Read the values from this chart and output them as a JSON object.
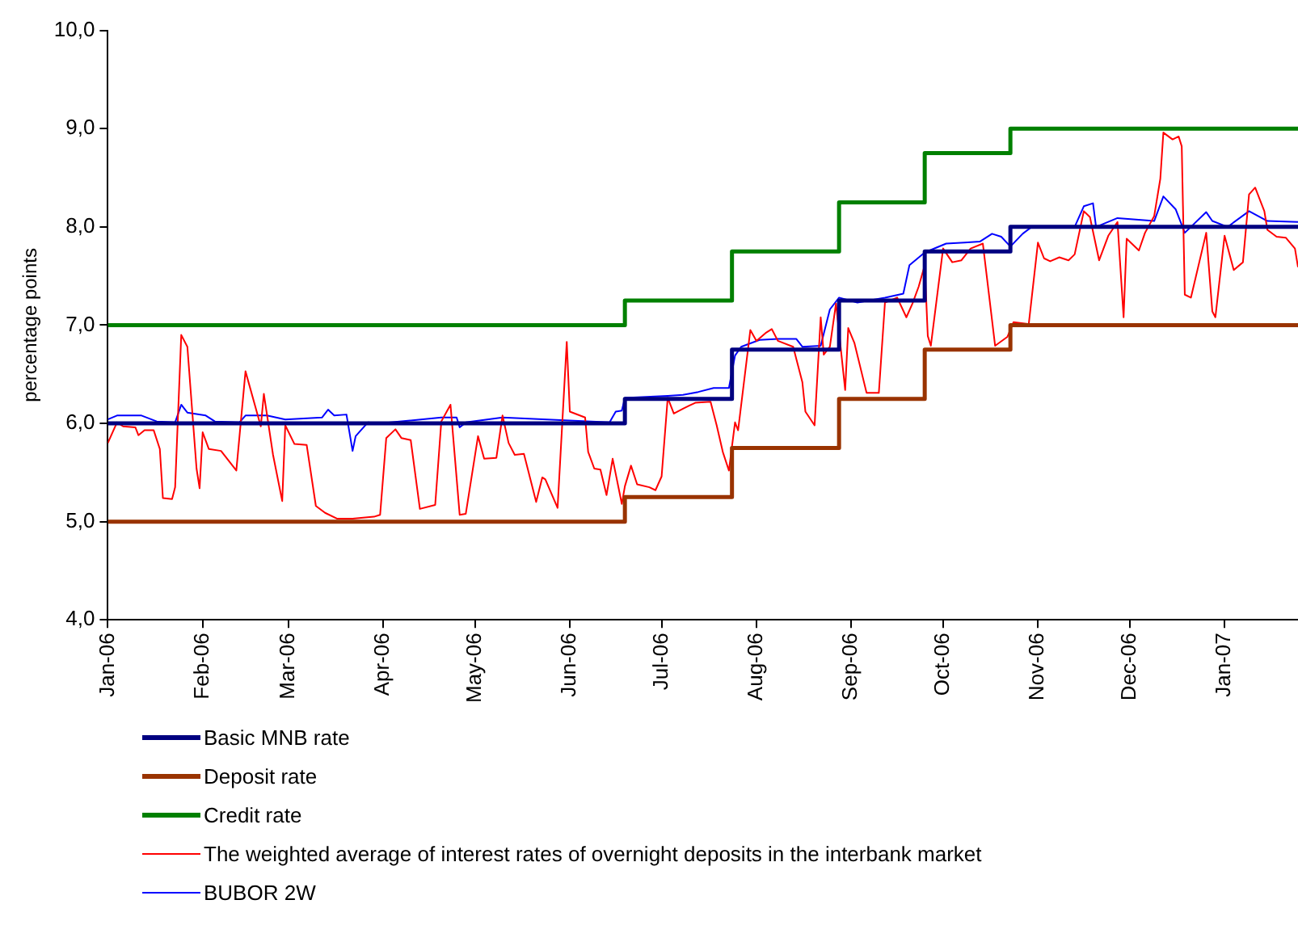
{
  "chart_data": {
    "type": "line",
    "ylabel": "percentage points",
    "legend": "bottom",
    "grid": false,
    "marker": "none",
    "line_style": "solid",
    "xlim": [
      "2006-01-01",
      "2007-01-25"
    ],
    "xticks": [
      {
        "value": "2006-01-01",
        "label": "Jan-06"
      },
      {
        "value": "2006-02-01",
        "label": "Feb-06"
      },
      {
        "value": "2006-03-01",
        "label": "Mar-06"
      },
      {
        "value": "2006-04-01",
        "label": "Apr-06"
      },
      {
        "value": "2006-05-01",
        "label": "May-06"
      },
      {
        "value": "2006-06-01",
        "label": "Jun-06"
      },
      {
        "value": "2006-07-01",
        "label": "Jul-06"
      },
      {
        "value": "2006-08-01",
        "label": "Aug-06"
      },
      {
        "value": "2006-09-01",
        "label": "Sep-06"
      },
      {
        "value": "2006-10-01",
        "label": "Oct-06"
      },
      {
        "value": "2006-11-01",
        "label": "Nov-06"
      },
      {
        "value": "2006-12-01",
        "label": "Dec-06"
      },
      {
        "value": "2007-01-01",
        "label": "Jan-07"
      }
    ],
    "ylim": [
      4,
      10
    ],
    "yticks": [
      {
        "value": 4,
        "label": "4,0"
      },
      {
        "value": 5,
        "label": "5,0"
      },
      {
        "value": 6,
        "label": "6,0"
      },
      {
        "value": 7,
        "label": "7,0"
      },
      {
        "value": 8,
        "label": "8,0"
      },
      {
        "value": 9,
        "label": "9,0"
      },
      {
        "value": 10,
        "label": "10,0"
      }
    ],
    "series": [
      {
        "name": "Basic MNB rate",
        "type": "step",
        "color": "#000080",
        "x": [
          "2006-01-01",
          "2006-06-19",
          "2006-07-24",
          "2006-08-28",
          "2006-09-25",
          "2006-10-23",
          "2007-01-25"
        ],
        "values": [
          6,
          6.25,
          6.75,
          7.25,
          7.75,
          8,
          8
        ]
      },
      {
        "name": "Deposit rate",
        "type": "step",
        "color": "#993300",
        "x": [
          "2006-01-01",
          "2006-06-19",
          "2006-07-24",
          "2006-08-28",
          "2006-09-25",
          "2006-10-23",
          "2007-01-25"
        ],
        "values": [
          5,
          5.25,
          5.75,
          6.25,
          6.75,
          7,
          7
        ]
      },
      {
        "name": "Credit rate",
        "type": "step",
        "color": "#008000",
        "x": [
          "2006-01-01",
          "2006-06-19",
          "2006-07-24",
          "2006-08-28",
          "2006-09-25",
          "2006-10-23",
          "2007-01-25"
        ],
        "values": [
          7,
          7.25,
          7.75,
          8.25,
          8.75,
          9,
          9
        ]
      },
      {
        "name": "The weighted average of interest rates of overnight deposits in the interbank market",
        "type": "line",
        "color": "#ff0000",
        "x": [
          "2006-01-01",
          "2006-01-04",
          "2006-01-06",
          "2006-01-10",
          "2006-01-11",
          "2006-01-13",
          "2006-01-16",
          "2006-01-18",
          "2006-01-19",
          "2006-01-22",
          "2006-01-23",
          "2006-01-25",
          "2006-01-27",
          "2006-01-30",
          "2006-01-31",
          "2006-02-01",
          "2006-02-03",
          "2006-02-07",
          "2006-02-12",
          "2006-02-15",
          "2006-02-20",
          "2006-02-21",
          "2006-02-24",
          "2006-02-27",
          "2006-02-28",
          "2006-03-03",
          "2006-03-07",
          "2006-03-10",
          "2006-03-13",
          "2006-03-17",
          "2006-03-22",
          "2006-03-29",
          "2006-03-31",
          "2006-04-02",
          "2006-04-05",
          "2006-04-07",
          "2006-04-10",
          "2006-04-13",
          "2006-04-18",
          "2006-04-20",
          "2006-04-23",
          "2006-04-26",
          "2006-04-28",
          "2006-05-02",
          "2006-05-04",
          "2006-05-08",
          "2006-05-10",
          "2006-05-12",
          "2006-05-14",
          "2006-05-17",
          "2006-05-21",
          "2006-05-23",
          "2006-05-24",
          "2006-05-28",
          "2006-05-31",
          "2006-06-01",
          "2006-06-06",
          "2006-06-07",
          "2006-06-09",
          "2006-06-11",
          "2006-06-13",
          "2006-06-15",
          "2006-06-18",
          "2006-06-19",
          "2006-06-21",
          "2006-06-23",
          "2006-06-27",
          "2006-06-29",
          "2006-07-01",
          "2006-07-03",
          "2006-07-05",
          "2006-07-08",
          "2006-07-10",
          "2006-07-12",
          "2006-07-17",
          "2006-07-19",
          "2006-07-21",
          "2006-07-23",
          "2006-07-25",
          "2006-07-26",
          "2006-07-30",
          "2006-08-01",
          "2006-08-04",
          "2006-08-06",
          "2006-08-08",
          "2006-08-13",
          "2006-08-16",
          "2006-08-17",
          "2006-08-20",
          "2006-08-22",
          "2006-08-23",
          "2006-08-25",
          "2006-08-27",
          "2006-08-30",
          "2006-08-31",
          "2006-09-02",
          "2006-09-06",
          "2006-09-10",
          "2006-09-12",
          "2006-09-16",
          "2006-09-19",
          "2006-09-21",
          "2006-09-23",
          "2006-09-25",
          "2006-09-26",
          "2006-09-27",
          "2006-10-01",
          "2006-10-04",
          "2006-10-07",
          "2006-10-10",
          "2006-10-14",
          "2006-10-18",
          "2006-10-22",
          "2006-10-24",
          "2006-10-29",
          "2006-11-01",
          "2006-11-03",
          "2006-11-05",
          "2006-11-08",
          "2006-11-11",
          "2006-11-13",
          "2006-11-16",
          "2006-11-18",
          "2006-11-21",
          "2006-11-24",
          "2006-11-27",
          "2006-11-29",
          "2006-11-30",
          "2006-12-04",
          "2006-12-06",
          "2006-12-09",
          "2006-12-11",
          "2006-12-12",
          "2006-12-15",
          "2006-12-17",
          "2006-12-18",
          "2006-12-19",
          "2006-12-21",
          "2006-12-26",
          "2006-12-28",
          "2006-12-29",
          "2007-01-01",
          "2007-01-04",
          "2007-01-07",
          "2007-01-09",
          "2007-01-11",
          "2007-01-14",
          "2007-01-15",
          "2007-01-18",
          "2007-01-21",
          "2007-01-24",
          "2007-01-25"
        ],
        "values": [
          5.8,
          6.01,
          5.97,
          5.96,
          5.88,
          5.93,
          5.93,
          5.74,
          5.24,
          5.23,
          5.35,
          6.9,
          6.78,
          5.54,
          5.34,
          5.91,
          5.74,
          5.72,
          5.52,
          6.53,
          5.97,
          6.3,
          5.68,
          5.21,
          5.98,
          5.79,
          5.78,
          5.16,
          5.09,
          5.03,
          5.03,
          5.05,
          5.07,
          5.85,
          5.94,
          5.85,
          5.83,
          5.13,
          5.17,
          6.02,
          6.19,
          5.07,
          5.08,
          5.87,
          5.64,
          5.65,
          6.08,
          5.8,
          5.68,
          5.69,
          5.2,
          5.45,
          5.43,
          5.14,
          6.83,
          6.12,
          6.06,
          5.71,
          5.54,
          5.53,
          5.27,
          5.64,
          5.18,
          5.36,
          5.57,
          5.38,
          5.35,
          5.32,
          5.46,
          6.26,
          6.1,
          6.15,
          6.18,
          6.21,
          6.22,
          5.98,
          5.71,
          5.52,
          6.01,
          5.93,
          6.95,
          6.84,
          6.92,
          6.96,
          6.84,
          6.78,
          6.42,
          6.12,
          5.98,
          7.08,
          6.7,
          6.78,
          7.22,
          6.34,
          6.97,
          6.82,
          6.31,
          6.31,
          7.23,
          7.28,
          7.08,
          7.22,
          7.39,
          7.61,
          6.89,
          6.79,
          7.78,
          7.64,
          7.66,
          7.78,
          7.83,
          6.79,
          6.88,
          7.03,
          7.01,
          7.84,
          7.68,
          7.65,
          7.69,
          7.66,
          7.72,
          8.16,
          8.1,
          7.66,
          7.91,
          8.05,
          7.08,
          7.88,
          7.76,
          7.94,
          8.11,
          8.49,
          8.96,
          8.89,
          8.92,
          8.82,
          7.31,
          7.28,
          7.94,
          7.14,
          7.08,
          7.91,
          7.56,
          7.64,
          8.33,
          8.4,
          8.16,
          7.97,
          7.9,
          7.89,
          7.78,
          7.59
        ]
      },
      {
        "name": "BUBOR 2W",
        "type": "line",
        "color": "#0000ff",
        "x": [
          "2006-01-01",
          "2006-01-04",
          "2006-01-12",
          "2006-01-17",
          "2006-01-23",
          "2006-01-25",
          "2006-01-27",
          "2006-02-02",
          "2006-02-05",
          "2006-02-13",
          "2006-02-15",
          "2006-02-22",
          "2006-02-28",
          "2006-03-12",
          "2006-03-14",
          "2006-03-16",
          "2006-03-20",
          "2006-03-22",
          "2006-03-23",
          "2006-03-27",
          "2006-03-31",
          "2006-04-20",
          "2006-04-25",
          "2006-04-26",
          "2006-04-28",
          "2006-05-10",
          "2006-06-14",
          "2006-06-16",
          "2006-06-18",
          "2006-06-19",
          "2006-07-03",
          "2006-07-08",
          "2006-07-13",
          "2006-07-18",
          "2006-07-23",
          "2006-07-25",
          "2006-07-27",
          "2006-08-02",
          "2006-08-08",
          "2006-08-14",
          "2006-08-16",
          "2006-08-22",
          "2006-08-25",
          "2006-08-28",
          "2006-09-03",
          "2006-09-12",
          "2006-09-18",
          "2006-09-20",
          "2006-09-25",
          "2006-10-02",
          "2006-10-08",
          "2006-10-13",
          "2006-10-17",
          "2006-10-20",
          "2006-10-23",
          "2006-10-27",
          "2006-10-30",
          "2006-11-13",
          "2006-11-16",
          "2006-11-19",
          "2006-11-20",
          "2006-11-27",
          "2006-12-09",
          "2006-12-12",
          "2006-12-16",
          "2006-12-19",
          "2006-12-26",
          "2006-12-28",
          "2007-01-02",
          "2007-01-09",
          "2007-01-15",
          "2007-01-25"
        ],
        "values": [
          6.04,
          6.08,
          6.08,
          6.02,
          6.01,
          6.19,
          6.11,
          6.08,
          6.02,
          6.01,
          6.08,
          6.08,
          6.04,
          6.06,
          6.14,
          6.08,
          6.09,
          5.72,
          5.87,
          6.01,
          6,
          6.06,
          6.06,
          5.96,
          6.01,
          6.06,
          6.01,
          6.12,
          6.13,
          6.26,
          6.28,
          6.29,
          6.32,
          6.36,
          6.36,
          6.69,
          6.78,
          6.85,
          6.86,
          6.86,
          6.78,
          6.79,
          7.16,
          7.28,
          7.23,
          7.28,
          7.32,
          7.61,
          7.74,
          7.83,
          7.84,
          7.85,
          7.93,
          7.9,
          7.8,
          7.93,
          8,
          8,
          8.21,
          8.24,
          8,
          8.09,
          8.06,
          8.31,
          8.18,
          7.94,
          8.15,
          8.06,
          8,
          8.16,
          8.06,
          8.05
        ]
      }
    ]
  }
}
